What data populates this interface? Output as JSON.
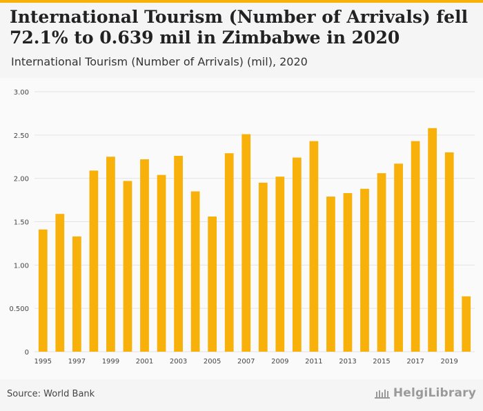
{
  "header": {
    "title": "International Tourism (Number of Arrivals) fell 72.1% to 0.639 mil in Zimbabwe in 2020",
    "subtitle": "International Tourism (Number of Arrivals) (mil), 2020"
  },
  "footer": {
    "source": "Source: World Bank",
    "brand": "HelgiLibrary"
  },
  "colors": {
    "bar": "#f7b10a",
    "accent": "#f7b10a",
    "grid": "#e3e3e3",
    "tick_text": "#444444"
  },
  "chart_data": {
    "type": "bar",
    "title": "International Tourism (Number of Arrivals) fell 72.1% to 0.639 mil in Zimbabwe in 2020",
    "subtitle": "International Tourism (Number of Arrivals) (mil), 2020",
    "xlabel": "",
    "ylabel": "",
    "ylim": [
      0,
      3
    ],
    "grid": true,
    "categories": [
      "1995",
      "1996",
      "1997",
      "1998",
      "1999",
      "2000",
      "2001",
      "2002",
      "2003",
      "2004",
      "2005",
      "2006",
      "2007",
      "2008",
      "2009",
      "2010",
      "2011",
      "2012",
      "2013",
      "2014",
      "2015",
      "2016",
      "2017",
      "2018",
      "2019",
      "2020"
    ],
    "values": [
      1.41,
      1.59,
      1.33,
      2.09,
      2.25,
      1.97,
      2.22,
      2.04,
      2.26,
      1.85,
      1.56,
      2.29,
      2.51,
      1.95,
      2.02,
      2.24,
      2.43,
      1.79,
      1.83,
      1.88,
      2.06,
      2.17,
      2.43,
      2.58,
      2.3,
      0.639
    ],
    "y_ticks": [
      {
        "value": 0,
        "label": "0"
      },
      {
        "value": 0.5,
        "label": "0.500"
      },
      {
        "value": 1,
        "label": "1.00"
      },
      {
        "value": 1.5,
        "label": "1.50"
      },
      {
        "value": 2,
        "label": "2.00"
      },
      {
        "value": 2.5,
        "label": "2.50"
      },
      {
        "value": 3,
        "label": "3.00"
      }
    ],
    "x_tick_labels": [
      "1995",
      "1997",
      "1999",
      "2001",
      "2003",
      "2005",
      "2007",
      "2009",
      "2011",
      "2013",
      "2015",
      "2017",
      "2019"
    ]
  }
}
